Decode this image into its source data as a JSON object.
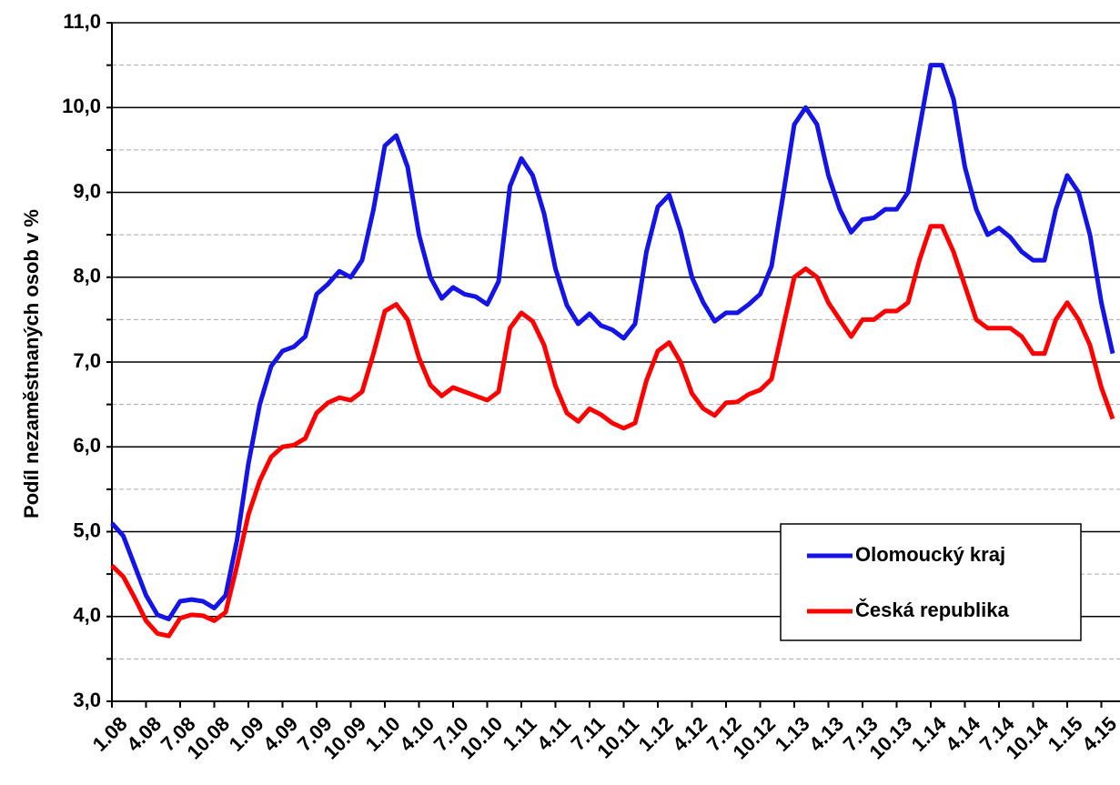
{
  "chart_data": {
    "type": "line",
    "y_label": "Podíl nezaměstnaných osob v %",
    "categories": [
      "1.08",
      null,
      null,
      "4.08",
      null,
      null,
      "7.08",
      null,
      null,
      "10.08",
      null,
      null,
      "1.09",
      null,
      null,
      "4.09",
      null,
      null,
      "7.09",
      null,
      null,
      "10.09",
      null,
      null,
      "1.10",
      null,
      null,
      "4.10",
      null,
      null,
      "7.10",
      null,
      null,
      "10.10",
      null,
      null,
      "1.11",
      null,
      null,
      "4.11",
      null,
      null,
      "7.11",
      null,
      null,
      "10.11",
      null,
      null,
      "1.12",
      null,
      null,
      "4.12",
      null,
      null,
      "7.12",
      null,
      null,
      "10.12",
      null,
      null,
      "1.13",
      null,
      null,
      "4.13",
      null,
      null,
      "7.13",
      null,
      null,
      "10.13",
      null,
      null,
      "1.14",
      null,
      null,
      "4.14",
      null,
      null,
      "7.14",
      null,
      null,
      "10.14",
      null,
      null,
      "1.15",
      null,
      null,
      "4.15",
      null
    ],
    "series": [
      {
        "name": "Olomoucký kraj",
        "color": "#1414e6",
        "values": [
          5.1,
          4.95,
          4.6,
          4.25,
          4.02,
          3.97,
          4.18,
          4.2,
          4.18,
          4.1,
          4.25,
          4.9,
          5.8,
          6.5,
          6.95,
          7.13,
          7.18,
          7.3,
          7.8,
          7.92,
          8.07,
          8.0,
          8.2,
          8.8,
          9.55,
          9.67,
          9.3,
          8.5,
          8.0,
          7.75,
          7.88,
          7.8,
          7.77,
          7.68,
          7.95,
          9.07,
          9.4,
          9.2,
          8.75,
          8.1,
          7.67,
          7.45,
          7.57,
          7.43,
          7.38,
          7.28,
          7.45,
          8.3,
          8.83,
          8.97,
          8.55,
          8.0,
          7.7,
          7.48,
          7.58,
          7.58,
          7.68,
          7.8,
          8.13,
          8.95,
          9.8,
          10.0,
          9.8,
          9.2,
          8.8,
          8.53,
          8.68,
          8.7,
          8.8,
          8.8,
          9.0,
          9.75,
          10.5,
          10.5,
          10.1,
          9.3,
          8.8,
          8.5,
          8.58,
          8.47,
          8.3,
          8.2,
          8.2,
          8.8,
          9.2,
          9.0,
          8.5,
          7.7,
          7.1
        ]
      },
      {
        "name": "Česká republika",
        "color": "#ff0000",
        "values": [
          4.6,
          4.47,
          4.22,
          3.95,
          3.8,
          3.77,
          3.98,
          4.02,
          4.01,
          3.95,
          4.05,
          4.6,
          5.2,
          5.6,
          5.88,
          6.0,
          6.02,
          6.1,
          6.4,
          6.52,
          6.58,
          6.55,
          6.65,
          7.1,
          7.6,
          7.68,
          7.5,
          7.05,
          6.73,
          6.6,
          6.7,
          6.65,
          6.6,
          6.55,
          6.65,
          7.4,
          7.58,
          7.48,
          7.2,
          6.72,
          6.4,
          6.3,
          6.45,
          6.38,
          6.28,
          6.22,
          6.28,
          6.78,
          7.13,
          7.23,
          7.0,
          6.63,
          6.45,
          6.37,
          6.52,
          6.53,
          6.62,
          6.67,
          6.8,
          7.4,
          8.0,
          8.1,
          8.0,
          7.7,
          7.5,
          7.3,
          7.5,
          7.5,
          7.6,
          7.6,
          7.7,
          8.2,
          8.6,
          8.6,
          8.3,
          7.9,
          7.5,
          7.4,
          7.4,
          7.4,
          7.3,
          7.1,
          7.1,
          7.5,
          7.7,
          7.5,
          7.2,
          6.7,
          6.33
        ]
      }
    ],
    "ylim": [
      3,
      11
    ],
    "yticks": [
      {
        "value": 3,
        "label": "3,0"
      },
      {
        "value": 4,
        "label": "4,0"
      },
      {
        "value": 5,
        "label": "5,0"
      },
      {
        "value": 6,
        "label": "6,0"
      },
      {
        "value": 7,
        "label": "7,0"
      },
      {
        "value": 8,
        "label": "8,0"
      },
      {
        "value": 9,
        "label": "9,0"
      },
      {
        "value": 10,
        "label": "10,0"
      },
      {
        "value": 11,
        "label": "11,0"
      }
    ],
    "yminorticks": [
      3.5,
      4.5,
      5.5,
      6.5,
      7.5,
      8.5,
      9.5,
      10.5
    ],
    "grid": true,
    "legend": "lower right"
  }
}
